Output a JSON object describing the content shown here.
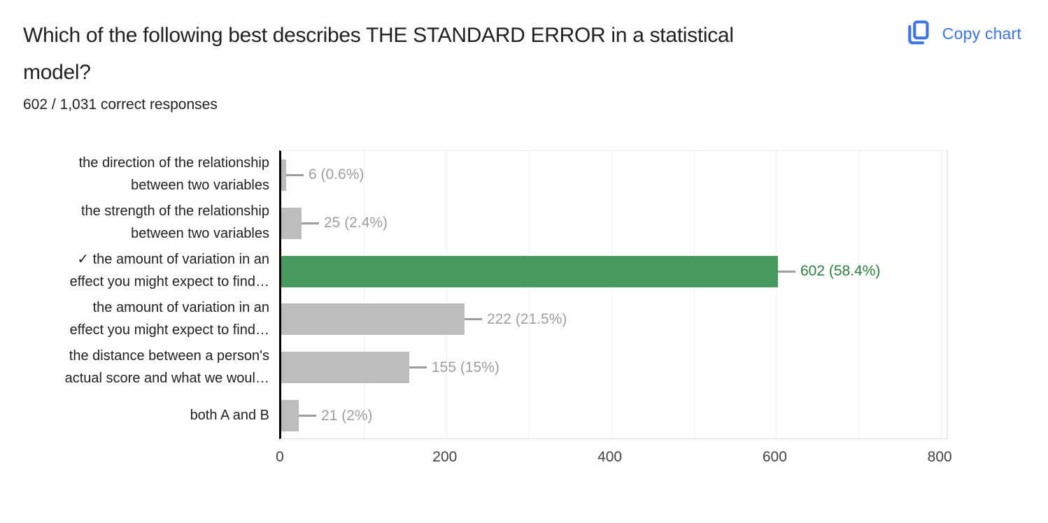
{
  "header": {
    "title": "Which of the following best describes THE STANDARD ERROR in a statistical model?",
    "title_lines": [
      "Which of the following best describes THE STANDARD ERROR in a statistical",
      "model?"
    ],
    "subtitle": "602 / 1,031 correct responses",
    "copy_button": {
      "label": "Copy chart",
      "icon": "copy-icon"
    }
  },
  "colors": {
    "accent_blue": "#3d73e8",
    "bar_gray": "#bdbdbd",
    "bar_correct_green": "#489a5f",
    "value_label_gray": "#9e9e9e",
    "value_label_green": "#2e7d40",
    "axis_black": "#000000",
    "gridline": "#efefef",
    "text_dark": "#212121",
    "tick_text": "#424242"
  },
  "chart_data": {
    "type": "bar",
    "orientation": "horizontal",
    "title": "Which of the following best describes THE STANDARD ERROR in a statistical model?",
    "subtitle": "602 / 1,031 correct responses",
    "categories": [
      "the direction of the relationship between two variables",
      "the strength of the relationship between two variables",
      "✓ the amount of variation in an effect you might expect to find…",
      "the amount of variation in an effect you might expect to find…",
      "the distance between a person's actual score and what we woul…",
      "both A and B"
    ],
    "category_lines": [
      [
        "the direction of the relationship",
        "between two variables"
      ],
      [
        "the strength of the relationship",
        "between two variables"
      ],
      [
        "✓ the amount of variation in an",
        "effect you might expect to find…"
      ],
      [
        "the amount of variation in an",
        "effect you might expect to find…"
      ],
      [
        "the distance between a person's",
        "actual score and what we woul…"
      ],
      [
        "both A and B"
      ]
    ],
    "values": [
      6,
      25,
      602,
      222,
      155,
      21
    ],
    "value_labels": [
      "6 (0.6%)",
      "25 (2.4%)",
      "602 (58.4%)",
      "222 (21.5%)",
      "155 (15%)",
      "21 (2%)"
    ],
    "correct_index": 2,
    "x_ticks": [
      0,
      200,
      400,
      600,
      800
    ],
    "xlim": [
      0,
      800
    ],
    "grid_interval": 100,
    "grid": true,
    "legend": "none"
  }
}
